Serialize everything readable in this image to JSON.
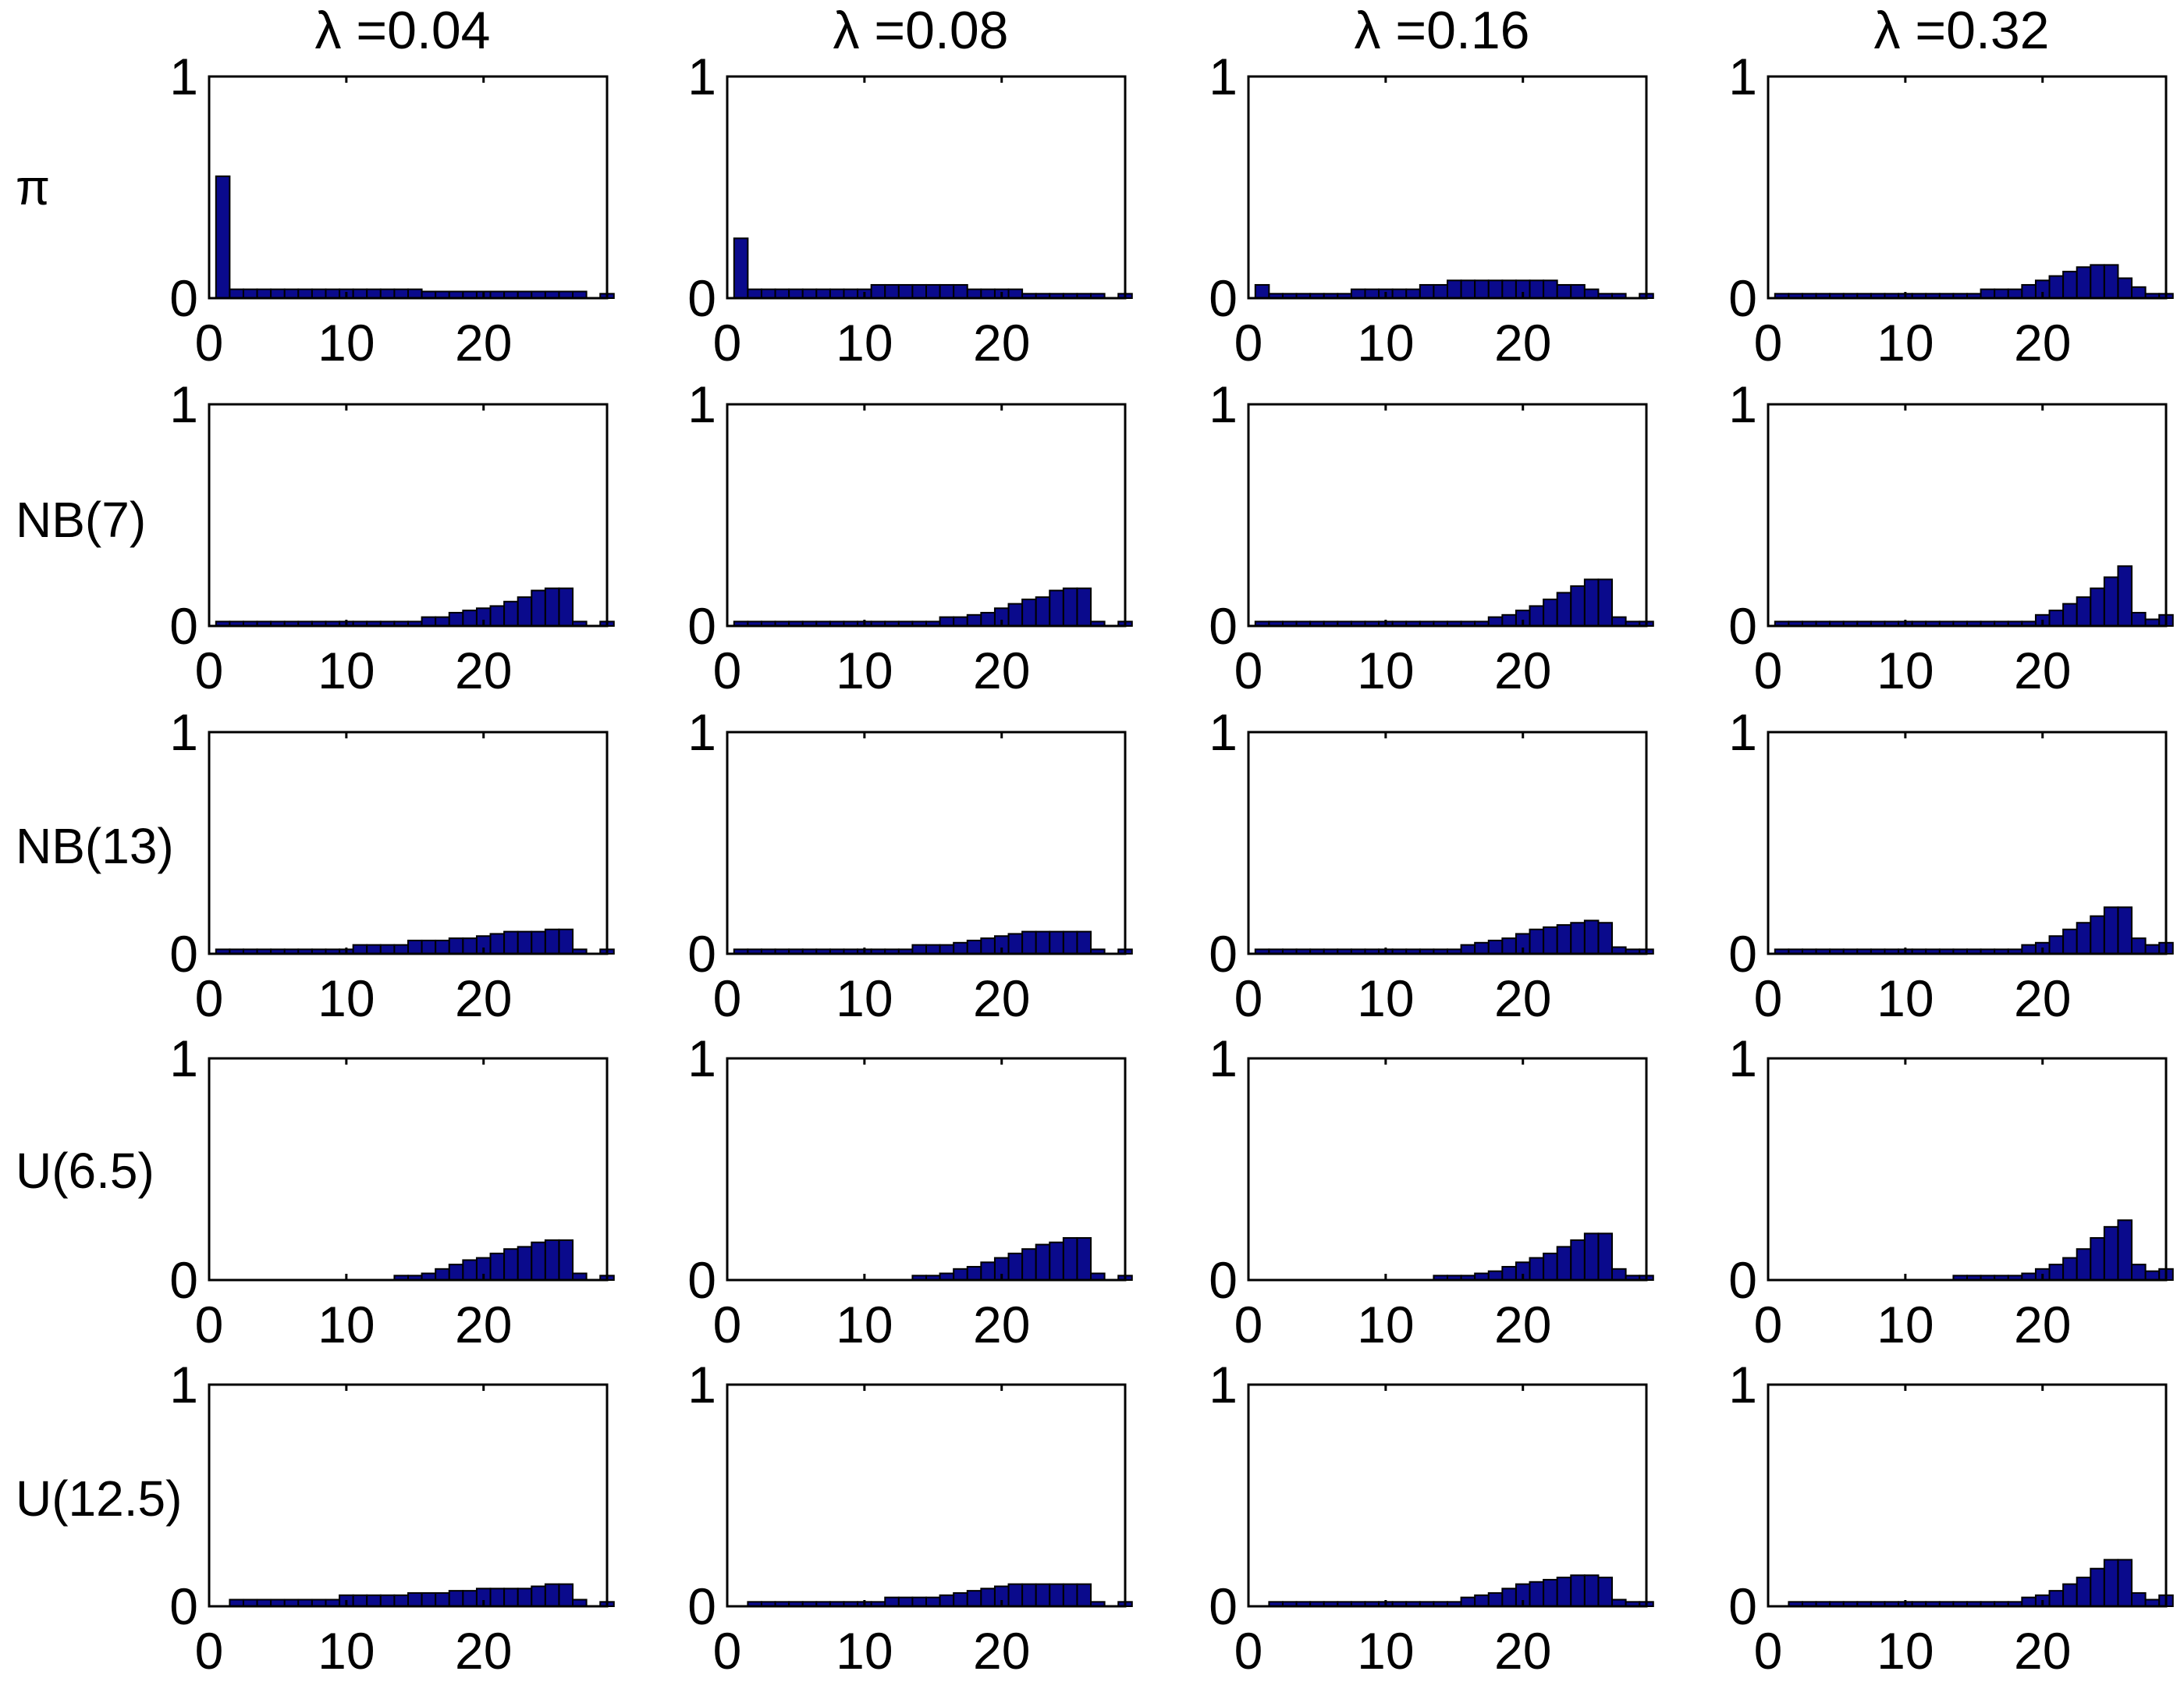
{
  "chart_data": {
    "type": "bar",
    "columns": [
      "λ =0.04",
      "λ =0.08",
      "λ =0.16",
      "λ =0.32"
    ],
    "rows": [
      "π",
      "NB(7)",
      "NB(13)",
      "U(6.5)",
      "U(12.5)"
    ],
    "xlim": [
      0,
      29
    ],
    "ylim": [
      0,
      1
    ],
    "xticks": [
      "0",
      "10",
      "20"
    ],
    "yticks": [
      "0",
      "1"
    ],
    "bar_color": "#0a0a8c",
    "x": [
      1,
      2,
      3,
      4,
      5,
      6,
      7,
      8,
      9,
      10,
      11,
      12,
      13,
      14,
      15,
      16,
      17,
      18,
      19,
      20,
      21,
      22,
      23,
      24,
      25,
      26,
      27,
      28,
      29
    ],
    "panels": [
      [
        [
          0.55,
          0.04,
          0.04,
          0.04,
          0.04,
          0.04,
          0.04,
          0.04,
          0.04,
          0.04,
          0.04,
          0.04,
          0.04,
          0.04,
          0.04,
          0.03,
          0.03,
          0.03,
          0.03,
          0.03,
          0.03,
          0.03,
          0.03,
          0.03,
          0.03,
          0.03,
          0.03,
          0.0,
          0.02
        ],
        [
          0.27,
          0.04,
          0.04,
          0.04,
          0.04,
          0.04,
          0.04,
          0.04,
          0.04,
          0.04,
          0.06,
          0.06,
          0.06,
          0.06,
          0.06,
          0.06,
          0.06,
          0.04,
          0.04,
          0.04,
          0.04,
          0.02,
          0.02,
          0.02,
          0.02,
          0.02,
          0.02,
          0.0,
          0.02
        ],
        [
          0.06,
          0.02,
          0.02,
          0.02,
          0.02,
          0.02,
          0.02,
          0.04,
          0.04,
          0.04,
          0.04,
          0.04,
          0.06,
          0.06,
          0.08,
          0.08,
          0.08,
          0.08,
          0.08,
          0.08,
          0.08,
          0.08,
          0.06,
          0.06,
          0.04,
          0.02,
          0.02,
          0.0,
          0.02
        ],
        [
          0.02,
          0.02,
          0.02,
          0.02,
          0.02,
          0.02,
          0.02,
          0.02,
          0.02,
          0.02,
          0.02,
          0.02,
          0.02,
          0.02,
          0.02,
          0.04,
          0.04,
          0.04,
          0.06,
          0.08,
          0.1,
          0.12,
          0.14,
          0.15,
          0.15,
          0.09,
          0.05,
          0.02,
          0.02
        ]
      ],
      [
        [
          0.02,
          0.02,
          0.02,
          0.02,
          0.02,
          0.02,
          0.02,
          0.02,
          0.02,
          0.02,
          0.02,
          0.02,
          0.02,
          0.02,
          0.02,
          0.04,
          0.04,
          0.06,
          0.07,
          0.08,
          0.09,
          0.11,
          0.13,
          0.16,
          0.17,
          0.17,
          0.02,
          0.0,
          0.02
        ],
        [
          0.02,
          0.02,
          0.02,
          0.02,
          0.02,
          0.02,
          0.02,
          0.02,
          0.02,
          0.02,
          0.02,
          0.02,
          0.02,
          0.02,
          0.02,
          0.04,
          0.04,
          0.05,
          0.06,
          0.08,
          0.1,
          0.12,
          0.13,
          0.16,
          0.17,
          0.17,
          0.02,
          0.0,
          0.02
        ],
        [
          0.02,
          0.02,
          0.02,
          0.02,
          0.02,
          0.02,
          0.02,
          0.02,
          0.02,
          0.02,
          0.02,
          0.02,
          0.02,
          0.02,
          0.02,
          0.02,
          0.02,
          0.04,
          0.05,
          0.07,
          0.09,
          0.12,
          0.15,
          0.18,
          0.21,
          0.21,
          0.04,
          0.02,
          0.02
        ],
        [
          0.02,
          0.02,
          0.02,
          0.02,
          0.02,
          0.02,
          0.02,
          0.02,
          0.02,
          0.02,
          0.02,
          0.02,
          0.02,
          0.02,
          0.02,
          0.02,
          0.02,
          0.02,
          0.02,
          0.05,
          0.07,
          0.1,
          0.13,
          0.17,
          0.22,
          0.27,
          0.06,
          0.03,
          0.05
        ]
      ],
      [
        [
          0.02,
          0.02,
          0.02,
          0.02,
          0.02,
          0.02,
          0.02,
          0.02,
          0.02,
          0.02,
          0.04,
          0.04,
          0.04,
          0.04,
          0.06,
          0.06,
          0.06,
          0.07,
          0.07,
          0.08,
          0.09,
          0.1,
          0.1,
          0.1,
          0.11,
          0.11,
          0.02,
          0.0,
          0.02
        ],
        [
          0.02,
          0.02,
          0.02,
          0.02,
          0.02,
          0.02,
          0.02,
          0.02,
          0.02,
          0.02,
          0.02,
          0.02,
          0.02,
          0.04,
          0.04,
          0.04,
          0.05,
          0.06,
          0.07,
          0.08,
          0.09,
          0.1,
          0.1,
          0.1,
          0.1,
          0.1,
          0.02,
          0.0,
          0.02
        ],
        [
          0.02,
          0.02,
          0.02,
          0.02,
          0.02,
          0.02,
          0.02,
          0.02,
          0.02,
          0.02,
          0.02,
          0.02,
          0.02,
          0.02,
          0.02,
          0.04,
          0.05,
          0.06,
          0.07,
          0.09,
          0.11,
          0.12,
          0.13,
          0.14,
          0.15,
          0.14,
          0.03,
          0.02,
          0.02
        ],
        [
          0.02,
          0.02,
          0.02,
          0.02,
          0.02,
          0.02,
          0.02,
          0.02,
          0.02,
          0.02,
          0.02,
          0.02,
          0.02,
          0.02,
          0.02,
          0.02,
          0.02,
          0.02,
          0.04,
          0.05,
          0.08,
          0.11,
          0.14,
          0.17,
          0.21,
          0.21,
          0.07,
          0.04,
          0.05
        ]
      ],
      [
        [
          0.0,
          0.0,
          0.0,
          0.0,
          0.0,
          0.0,
          0.0,
          0.0,
          0.0,
          0.0,
          0.0,
          0.0,
          0.0,
          0.02,
          0.02,
          0.03,
          0.05,
          0.07,
          0.09,
          0.1,
          0.12,
          0.14,
          0.15,
          0.17,
          0.18,
          0.18,
          0.03,
          0.0,
          0.02
        ],
        [
          0.0,
          0.0,
          0.0,
          0.0,
          0.0,
          0.0,
          0.0,
          0.0,
          0.0,
          0.0,
          0.0,
          0.0,
          0.0,
          0.02,
          0.02,
          0.03,
          0.05,
          0.06,
          0.08,
          0.1,
          0.12,
          0.14,
          0.16,
          0.17,
          0.19,
          0.19,
          0.03,
          0.0,
          0.02
        ],
        [
          0.0,
          0.0,
          0.0,
          0.0,
          0.0,
          0.0,
          0.0,
          0.0,
          0.0,
          0.0,
          0.0,
          0.0,
          0.0,
          0.02,
          0.02,
          0.02,
          0.03,
          0.04,
          0.06,
          0.08,
          0.1,
          0.12,
          0.15,
          0.18,
          0.21,
          0.21,
          0.05,
          0.02,
          0.02
        ],
        [
          0.0,
          0.0,
          0.0,
          0.0,
          0.0,
          0.0,
          0.0,
          0.0,
          0.0,
          0.0,
          0.0,
          0.0,
          0.0,
          0.02,
          0.02,
          0.02,
          0.02,
          0.02,
          0.03,
          0.05,
          0.07,
          0.1,
          0.14,
          0.19,
          0.24,
          0.27,
          0.07,
          0.04,
          0.05
        ]
      ],
      [
        [
          0.0,
          0.03,
          0.03,
          0.03,
          0.03,
          0.03,
          0.03,
          0.03,
          0.03,
          0.05,
          0.05,
          0.05,
          0.05,
          0.05,
          0.06,
          0.06,
          0.06,
          0.07,
          0.07,
          0.08,
          0.08,
          0.08,
          0.08,
          0.09,
          0.1,
          0.1,
          0.03,
          0.0,
          0.02
        ],
        [
          0.0,
          0.02,
          0.02,
          0.02,
          0.02,
          0.02,
          0.02,
          0.02,
          0.02,
          0.02,
          0.02,
          0.04,
          0.04,
          0.04,
          0.04,
          0.05,
          0.06,
          0.07,
          0.08,
          0.09,
          0.1,
          0.1,
          0.1,
          0.1,
          0.1,
          0.1,
          0.02,
          0.0,
          0.02
        ],
        [
          0.0,
          0.02,
          0.02,
          0.02,
          0.02,
          0.02,
          0.02,
          0.02,
          0.02,
          0.02,
          0.02,
          0.02,
          0.02,
          0.02,
          0.02,
          0.04,
          0.05,
          0.06,
          0.08,
          0.1,
          0.11,
          0.12,
          0.13,
          0.14,
          0.14,
          0.13,
          0.03,
          0.02,
          0.02
        ],
        [
          0.0,
          0.02,
          0.02,
          0.02,
          0.02,
          0.02,
          0.02,
          0.02,
          0.02,
          0.02,
          0.02,
          0.02,
          0.02,
          0.02,
          0.02,
          0.02,
          0.02,
          0.02,
          0.04,
          0.05,
          0.07,
          0.1,
          0.13,
          0.17,
          0.21,
          0.21,
          0.06,
          0.03,
          0.05
        ]
      ]
    ]
  }
}
